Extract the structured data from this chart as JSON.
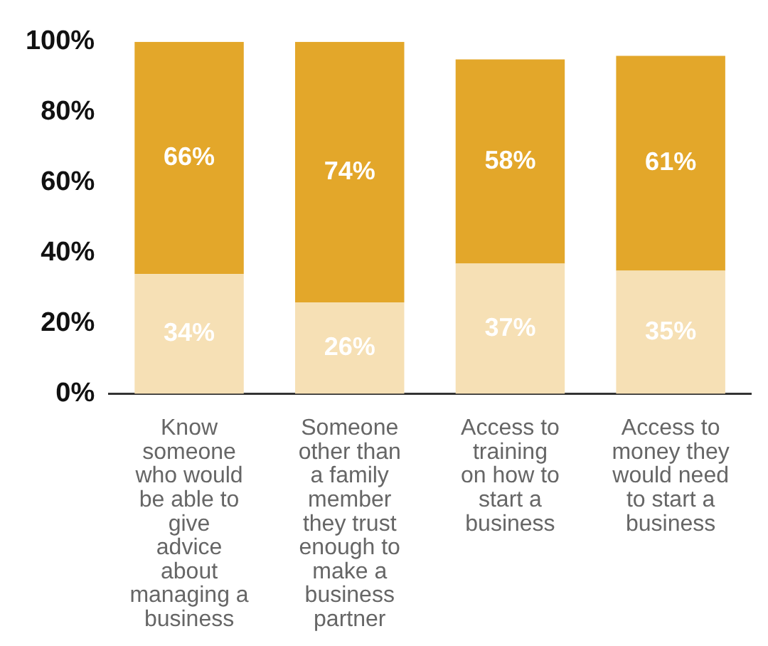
{
  "chart_data": {
    "type": "bar",
    "stacked": true,
    "categories": [
      "Know someone who would be able to give advice about managing a business",
      "Someone other than a family member they trust enough to make a business partner",
      "Access to training on how to start a business",
      "Access to money they would need to start a business"
    ],
    "series": [
      {
        "color": "#f6e0b5",
        "values": [
          34,
          26,
          37,
          35
        ],
        "value_labels": [
          "34%",
          "26%",
          "37%",
          "35%"
        ]
      },
      {
        "color": "#e3a72a",
        "values": [
          66,
          74,
          58,
          61
        ],
        "value_labels": [
          "66%",
          "74%",
          "58%",
          "61%"
        ]
      }
    ],
    "ylim": [
      0,
      100
    ],
    "yticks": [
      {
        "value": 0,
        "label": "0%"
      },
      {
        "value": 20,
        "label": "20%"
      },
      {
        "value": 40,
        "label": "40%"
      },
      {
        "value": 60,
        "label": "60%"
      },
      {
        "value": 80,
        "label": "80%"
      },
      {
        "value": 100,
        "label": "100%"
      }
    ],
    "grid": false,
    "legend": false
  }
}
